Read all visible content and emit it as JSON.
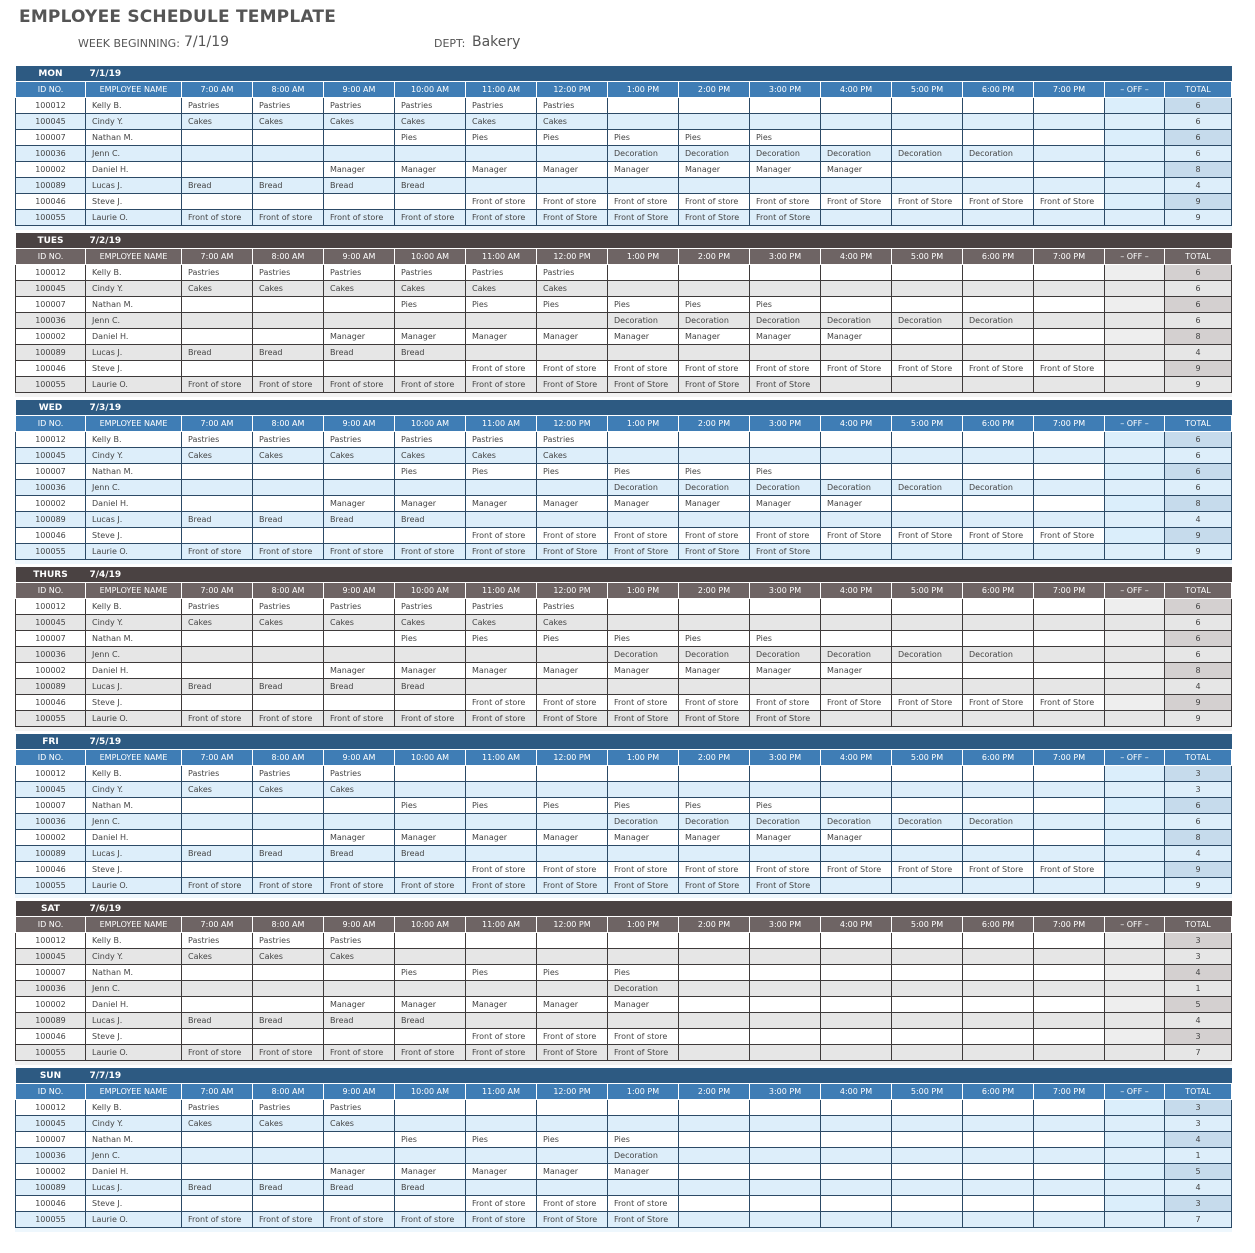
{
  "title": "EMPLOYEE SCHEDULE TEMPLATE",
  "week_beginning_label": "WEEK BEGINNING:",
  "week_beginning": "7/1/19",
  "dept_label": "DEPT:",
  "dept": "Bakery",
  "colors": {
    "blue_day": "#2d5a82",
    "blue_header": "#3f7db5",
    "blue_alt": "#ddeefa",
    "gray_day": "#4a4242",
    "gray_header": "#6e6464",
    "gray_alt": "#e6e6e6"
  },
  "columns": [
    "ID NO.",
    "EMPLOYEE NAME",
    "7:00 AM",
    "8:00 AM",
    "9:00 AM",
    "10:00 AM",
    "11:00 AM",
    "12:00 PM",
    "1:00 PM",
    "2:00 PM",
    "3:00 PM",
    "4:00 PM",
    "5:00 PM",
    "6:00 PM",
    "7:00 PM",
    "– OFF –",
    "TOTAL"
  ],
  "employees": [
    {
      "id": "100012",
      "name": "Kelly B."
    },
    {
      "id": "100045",
      "name": "Cindy Y."
    },
    {
      "id": "100007",
      "name": "Nathan M."
    },
    {
      "id": "100036",
      "name": "Jenn C."
    },
    {
      "id": "100002",
      "name": "Daniel H."
    },
    {
      "id": "100089",
      "name": "Lucas J."
    },
    {
      "id": "100046",
      "name": "Steve J."
    },
    {
      "id": "100055",
      "name": "Laurie O."
    }
  ],
  "days": [
    {
      "day": "MON",
      "date": "7/1/19",
      "theme": "blue",
      "totals": [
        "6",
        "6",
        "6",
        "6",
        "8",
        "4",
        "9",
        "9"
      ],
      "shifts": [
        [
          "Pastries",
          "Pastries",
          "Pastries",
          "Pastries",
          "Pastries",
          "Pastries",
          "",
          "",
          "",
          "",
          "",
          "",
          ""
        ],
        [
          "Cakes",
          "Cakes",
          "Cakes",
          "Cakes",
          "Cakes",
          "Cakes",
          "",
          "",
          "",
          "",
          "",
          "",
          ""
        ],
        [
          "",
          "",
          "",
          "Pies",
          "Pies",
          "Pies",
          "Pies",
          "Pies",
          "Pies",
          "",
          "",
          "",
          ""
        ],
        [
          "",
          "",
          "",
          "",
          "",
          "",
          "Decoration",
          "Decoration",
          "Decoration",
          "Decoration",
          "Decoration",
          "Decoration",
          ""
        ],
        [
          "",
          "",
          "Manager",
          "Manager",
          "Manager",
          "Manager",
          "Manager",
          "Manager",
          "Manager",
          "Manager",
          "",
          "",
          ""
        ],
        [
          "Bread",
          "Bread",
          "Bread",
          "Bread",
          "",
          "",
          "",
          "",
          "",
          "",
          "",
          "",
          ""
        ],
        [
          "",
          "",
          "",
          "",
          "Front of store",
          "Front of store",
          "Front of store",
          "Front of store",
          "Front of store",
          "Front of Store",
          "Front of Store",
          "Front of Store",
          "Front of Store"
        ],
        [
          "Front of store",
          "Front of store",
          "Front of store",
          "Front of store",
          "Front of store",
          "Front of Store",
          "Front of Store",
          "Front of Store",
          "Front of Store",
          "",
          "",
          "",
          ""
        ]
      ]
    },
    {
      "day": "TUES",
      "date": "7/2/19",
      "theme": "gray",
      "totals": [
        "6",
        "6",
        "6",
        "6",
        "8",
        "4",
        "9",
        "9"
      ],
      "shifts": [
        [
          "Pastries",
          "Pastries",
          "Pastries",
          "Pastries",
          "Pastries",
          "Pastries",
          "",
          "",
          "",
          "",
          "",
          "",
          ""
        ],
        [
          "Cakes",
          "Cakes",
          "Cakes",
          "Cakes",
          "Cakes",
          "Cakes",
          "",
          "",
          "",
          "",
          "",
          "",
          ""
        ],
        [
          "",
          "",
          "",
          "Pies",
          "Pies",
          "Pies",
          "Pies",
          "Pies",
          "Pies",
          "",
          "",
          "",
          ""
        ],
        [
          "",
          "",
          "",
          "",
          "",
          "",
          "Decoration",
          "Decoration",
          "Decoration",
          "Decoration",
          "Decoration",
          "Decoration",
          ""
        ],
        [
          "",
          "",
          "Manager",
          "Manager",
          "Manager",
          "Manager",
          "Manager",
          "Manager",
          "Manager",
          "Manager",
          "",
          "",
          ""
        ],
        [
          "Bread",
          "Bread",
          "Bread",
          "Bread",
          "",
          "",
          "",
          "",
          "",
          "",
          "",
          "",
          ""
        ],
        [
          "",
          "",
          "",
          "",
          "Front of store",
          "Front of store",
          "Front of store",
          "Front of store",
          "Front of store",
          "Front of Store",
          "Front of Store",
          "Front of Store",
          "Front of Store"
        ],
        [
          "Front of store",
          "Front of store",
          "Front of store",
          "Front of store",
          "Front of store",
          "Front of Store",
          "Front of Store",
          "Front of Store",
          "Front of Store",
          "",
          "",
          "",
          ""
        ]
      ]
    },
    {
      "day": "WED",
      "date": "7/3/19",
      "theme": "blue",
      "totals": [
        "6",
        "6",
        "6",
        "6",
        "8",
        "4",
        "9",
        "9"
      ],
      "shifts": [
        [
          "Pastries",
          "Pastries",
          "Pastries",
          "Pastries",
          "Pastries",
          "Pastries",
          "",
          "",
          "",
          "",
          "",
          "",
          ""
        ],
        [
          "Cakes",
          "Cakes",
          "Cakes",
          "Cakes",
          "Cakes",
          "Cakes",
          "",
          "",
          "",
          "",
          "",
          "",
          ""
        ],
        [
          "",
          "",
          "",
          "Pies",
          "Pies",
          "Pies",
          "Pies",
          "Pies",
          "Pies",
          "",
          "",
          "",
          ""
        ],
        [
          "",
          "",
          "",
          "",
          "",
          "",
          "Decoration",
          "Decoration",
          "Decoration",
          "Decoration",
          "Decoration",
          "Decoration",
          ""
        ],
        [
          "",
          "",
          "Manager",
          "Manager",
          "Manager",
          "Manager",
          "Manager",
          "Manager",
          "Manager",
          "Manager",
          "",
          "",
          ""
        ],
        [
          "Bread",
          "Bread",
          "Bread",
          "Bread",
          "",
          "",
          "",
          "",
          "",
          "",
          "",
          "",
          ""
        ],
        [
          "",
          "",
          "",
          "",
          "Front of store",
          "Front of store",
          "Front of store",
          "Front of store",
          "Front of store",
          "Front of Store",
          "Front of Store",
          "Front of Store",
          "Front of Store"
        ],
        [
          "Front of store",
          "Front of store",
          "Front of store",
          "Front of store",
          "Front of store",
          "Front of Store",
          "Front of Store",
          "Front of Store",
          "Front of Store",
          "",
          "",
          "",
          ""
        ]
      ]
    },
    {
      "day": "THURS",
      "date": "7/4/19",
      "theme": "gray",
      "totals": [
        "6",
        "6",
        "6",
        "6",
        "8",
        "4",
        "9",
        "9"
      ],
      "shifts": [
        [
          "Pastries",
          "Pastries",
          "Pastries",
          "Pastries",
          "Pastries",
          "Pastries",
          "",
          "",
          "",
          "",
          "",
          "",
          ""
        ],
        [
          "Cakes",
          "Cakes",
          "Cakes",
          "Cakes",
          "Cakes",
          "Cakes",
          "",
          "",
          "",
          "",
          "",
          "",
          ""
        ],
        [
          "",
          "",
          "",
          "Pies",
          "Pies",
          "Pies",
          "Pies",
          "Pies",
          "Pies",
          "",
          "",
          "",
          ""
        ],
        [
          "",
          "",
          "",
          "",
          "",
          "",
          "Decoration",
          "Decoration",
          "Decoration",
          "Decoration",
          "Decoration",
          "Decoration",
          ""
        ],
        [
          "",
          "",
          "Manager",
          "Manager",
          "Manager",
          "Manager",
          "Manager",
          "Manager",
          "Manager",
          "Manager",
          "",
          "",
          ""
        ],
        [
          "Bread",
          "Bread",
          "Bread",
          "Bread",
          "",
          "",
          "",
          "",
          "",
          "",
          "",
          "",
          ""
        ],
        [
          "",
          "",
          "",
          "",
          "Front of store",
          "Front of store",
          "Front of store",
          "Front of store",
          "Front of store",
          "Front of Store",
          "Front of Store",
          "Front of Store",
          "Front of Store"
        ],
        [
          "Front of store",
          "Front of store",
          "Front of store",
          "Front of store",
          "Front of store",
          "Front of Store",
          "Front of Store",
          "Front of Store",
          "Front of Store",
          "",
          "",
          "",
          ""
        ]
      ]
    },
    {
      "day": "FRI",
      "date": "7/5/19",
      "theme": "blue",
      "totals": [
        "3",
        "3",
        "6",
        "6",
        "8",
        "4",
        "9",
        "9"
      ],
      "shifts": [
        [
          "Pastries",
          "Pastries",
          "Pastries",
          "",
          "",
          "",
          "",
          "",
          "",
          "",
          "",
          "",
          ""
        ],
        [
          "Cakes",
          "Cakes",
          "Cakes",
          "",
          "",
          "",
          "",
          "",
          "",
          "",
          "",
          "",
          ""
        ],
        [
          "",
          "",
          "",
          "Pies",
          "Pies",
          "Pies",
          "Pies",
          "Pies",
          "Pies",
          "",
          "",
          "",
          ""
        ],
        [
          "",
          "",
          "",
          "",
          "",
          "",
          "Decoration",
          "Decoration",
          "Decoration",
          "Decoration",
          "Decoration",
          "Decoration",
          ""
        ],
        [
          "",
          "",
          "Manager",
          "Manager",
          "Manager",
          "Manager",
          "Manager",
          "Manager",
          "Manager",
          "Manager",
          "",
          "",
          ""
        ],
        [
          "Bread",
          "Bread",
          "Bread",
          "Bread",
          "",
          "",
          "",
          "",
          "",
          "",
          "",
          "",
          ""
        ],
        [
          "",
          "",
          "",
          "",
          "Front of store",
          "Front of store",
          "Front of store",
          "Front of store",
          "Front of store",
          "Front of Store",
          "Front of Store",
          "Front of Store",
          "Front of Store"
        ],
        [
          "Front of store",
          "Front of store",
          "Front of store",
          "Front of store",
          "Front of store",
          "Front of Store",
          "Front of Store",
          "Front of Store",
          "Front of Store",
          "",
          "",
          "",
          ""
        ]
      ]
    },
    {
      "day": "SAT",
      "date": "7/6/19",
      "theme": "gray",
      "totals": [
        "3",
        "3",
        "4",
        "1",
        "5",
        "4",
        "3",
        "7"
      ],
      "shifts": [
        [
          "Pastries",
          "Pastries",
          "Pastries",
          "",
          "",
          "",
          "",
          "",
          "",
          "",
          "",
          "",
          ""
        ],
        [
          "Cakes",
          "Cakes",
          "Cakes",
          "",
          "",
          "",
          "",
          "",
          "",
          "",
          "",
          "",
          ""
        ],
        [
          "",
          "",
          "",
          "Pies",
          "Pies",
          "Pies",
          "Pies",
          "",
          "",
          "",
          "",
          "",
          ""
        ],
        [
          "",
          "",
          "",
          "",
          "",
          "",
          "Decoration",
          "",
          "",
          "",
          "",
          "",
          ""
        ],
        [
          "",
          "",
          "Manager",
          "Manager",
          "Manager",
          "Manager",
          "Manager",
          "",
          "",
          "",
          "",
          "",
          ""
        ],
        [
          "Bread",
          "Bread",
          "Bread",
          "Bread",
          "",
          "",
          "",
          "",
          "",
          "",
          "",
          "",
          ""
        ],
        [
          "",
          "",
          "",
          "",
          "Front of store",
          "Front of store",
          "Front of store",
          "",
          "",
          "",
          "",
          "",
          ""
        ],
        [
          "Front of store",
          "Front of store",
          "Front of store",
          "Front of store",
          "Front of store",
          "Front of Store",
          "Front of Store",
          "",
          "",
          "",
          "",
          "",
          ""
        ]
      ]
    },
    {
      "day": "SUN",
      "date": "7/7/19",
      "theme": "blue",
      "totals": [
        "3",
        "3",
        "4",
        "1",
        "5",
        "4",
        "3",
        "7"
      ],
      "shifts": [
        [
          "Pastries",
          "Pastries",
          "Pastries",
          "",
          "",
          "",
          "",
          "",
          "",
          "",
          "",
          "",
          ""
        ],
        [
          "Cakes",
          "Cakes",
          "Cakes",
          "",
          "",
          "",
          "",
          "",
          "",
          "",
          "",
          "",
          ""
        ],
        [
          "",
          "",
          "",
          "Pies",
          "Pies",
          "Pies",
          "Pies",
          "",
          "",
          "",
          "",
          "",
          ""
        ],
        [
          "",
          "",
          "",
          "",
          "",
          "",
          "Decoration",
          "",
          "",
          "",
          "",
          "",
          ""
        ],
        [
          "",
          "",
          "Manager",
          "Manager",
          "Manager",
          "Manager",
          "Manager",
          "",
          "",
          "",
          "",
          "",
          ""
        ],
        [
          "Bread",
          "Bread",
          "Bread",
          "Bread",
          "",
          "",
          "",
          "",
          "",
          "",
          "",
          "",
          ""
        ],
        [
          "",
          "",
          "",
          "",
          "Front of store",
          "Front of store",
          "Front of store",
          "",
          "",
          "",
          "",
          "",
          ""
        ],
        [
          "Front of store",
          "Front of store",
          "Front of store",
          "Front of store",
          "Front of store",
          "Front of Store",
          "Front of Store",
          "",
          "",
          "",
          "",
          "",
          ""
        ]
      ]
    }
  ]
}
